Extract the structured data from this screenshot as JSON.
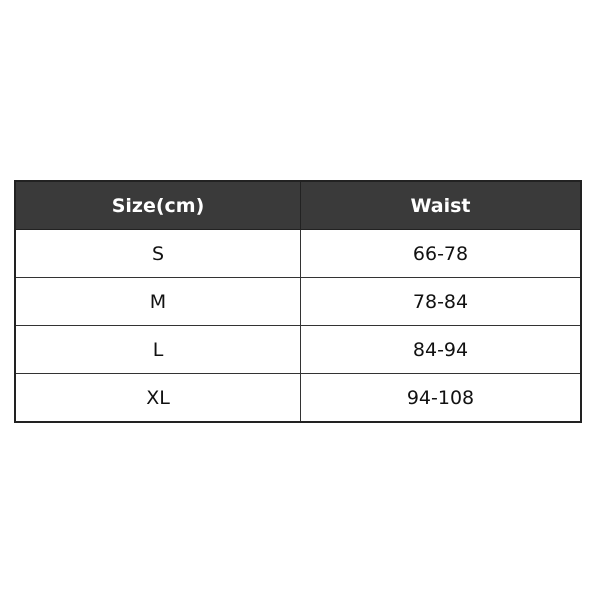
{
  "table": {
    "headers": [
      "Size(cm)",
      "Waist"
    ],
    "rows": [
      [
        "S",
        "66-78"
      ],
      [
        "M",
        "78-84"
      ],
      [
        "L",
        "84-94"
      ],
      [
        "XL",
        "94-108"
      ]
    ]
  },
  "colors": {
    "header_bg": "#3a3a3a",
    "header_text": "#ffffff",
    "border": "#333333"
  }
}
